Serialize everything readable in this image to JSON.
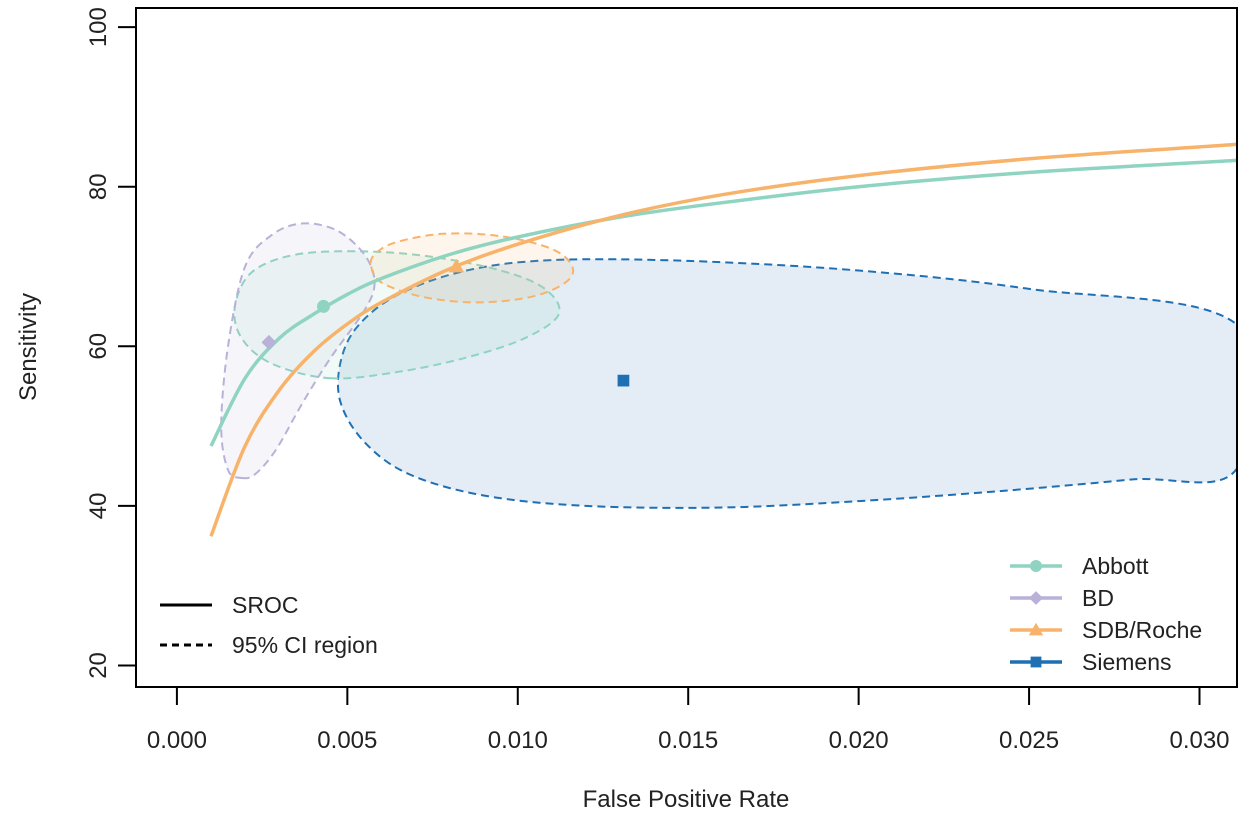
{
  "chart_data": {
    "type": "line",
    "xlabel": "False Positive Rate",
    "ylabel": "Sensitivity",
    "xlim": [
      -0.0012,
      0.0311
    ],
    "ylim": [
      17.3,
      102.4
    ],
    "x_ticks": [
      0.0,
      0.005,
      0.01,
      0.015,
      0.02,
      0.025,
      0.03
    ],
    "x_tick_labels": [
      "0.000",
      "0.005",
      "0.010",
      "0.015",
      "0.020",
      "0.025",
      "0.030"
    ],
    "y_ticks": [
      20,
      40,
      60,
      80,
      100
    ],
    "y_tick_labels": [
      "20",
      "40",
      "60",
      "80",
      "100"
    ],
    "legend_position": "bottom-right",
    "line_type_legend_position": "bottom-left",
    "line_types": [
      {
        "label": "SROC",
        "style": "solid"
      },
      {
        "label": "95% CI region",
        "style": "dashed"
      }
    ],
    "series": [
      {
        "name": "Abbott",
        "color": "#8fd4c1",
        "marker": "circle",
        "point": [
          0.0043,
          65.0
        ],
        "sroc": [
          [
            0.001,
            47.5
          ],
          [
            0.002,
            56.0
          ],
          [
            0.003,
            61.0
          ],
          [
            0.004,
            64.0
          ],
          [
            0.005,
            66.5
          ],
          [
            0.006,
            68.5
          ],
          [
            0.008,
            71.5
          ],
          [
            0.01,
            73.7
          ],
          [
            0.013,
            76.2
          ],
          [
            0.016,
            78.0
          ],
          [
            0.02,
            80.0
          ],
          [
            0.025,
            81.8
          ],
          [
            0.0311,
            83.3
          ]
        ],
        "ci": [
          [
            0.0045,
            56.0
          ],
          [
            0.0065,
            56.8
          ],
          [
            0.0085,
            58.6
          ],
          [
            0.0102,
            61.0
          ],
          [
            0.0112,
            64.0
          ],
          [
            0.0108,
            67.2
          ],
          [
            0.0095,
            69.5
          ],
          [
            0.0075,
            71.2
          ],
          [
            0.0055,
            71.9
          ],
          [
            0.0035,
            71.5
          ],
          [
            0.0022,
            69.3
          ],
          [
            0.0017,
            65.0
          ],
          [
            0.0019,
            61.0
          ],
          [
            0.0028,
            57.8
          ]
        ]
      },
      {
        "name": "BD",
        "color": "#b9b1d8",
        "marker": "diamond",
        "point": [
          0.0027,
          60.5
        ],
        "sroc": [],
        "ci": [
          [
            0.0019,
            43.5
          ],
          [
            0.0023,
            44.0
          ],
          [
            0.0029,
            47.0
          ],
          [
            0.0037,
            53.0
          ],
          [
            0.0045,
            58.5
          ],
          [
            0.0055,
            64.5
          ],
          [
            0.0058,
            68.0
          ],
          [
            0.0055,
            71.5
          ],
          [
            0.0047,
            74.5
          ],
          [
            0.0037,
            75.4
          ],
          [
            0.0028,
            74.0
          ],
          [
            0.002,
            70.0
          ],
          [
            0.0015,
            60.0
          ],
          [
            0.0013,
            50.0
          ],
          [
            0.0015,
            44.5
          ]
        ]
      },
      {
        "name": "SDB/Roche",
        "color": "#f8b36b",
        "marker": "triangle",
        "point": [
          0.0082,
          70.0
        ],
        "sroc": [
          [
            0.001,
            36.2
          ],
          [
            0.002,
            47.5
          ],
          [
            0.003,
            54.5
          ],
          [
            0.004,
            59.3
          ],
          [
            0.005,
            62.8
          ],
          [
            0.006,
            65.5
          ],
          [
            0.008,
            69.7
          ],
          [
            0.01,
            72.8
          ],
          [
            0.013,
            76.4
          ],
          [
            0.016,
            79.0
          ],
          [
            0.02,
            81.4
          ],
          [
            0.025,
            83.5
          ],
          [
            0.0311,
            85.3
          ]
        ],
        "ci": [
          [
            0.0057,
            70.0
          ],
          [
            0.006,
            68.0
          ],
          [
            0.0072,
            66.2
          ],
          [
            0.0088,
            65.5
          ],
          [
            0.0104,
            66.2
          ],
          [
            0.0114,
            68.0
          ],
          [
            0.0116,
            70.0
          ],
          [
            0.011,
            72.2
          ],
          [
            0.0095,
            73.8
          ],
          [
            0.0078,
            74.1
          ],
          [
            0.0064,
            73.0
          ],
          [
            0.0058,
            71.5
          ]
        ]
      },
      {
        "name": "Siemens",
        "color": "#1f6fb4",
        "marker": "square",
        "point": [
          0.0131,
          55.7
        ],
        "sroc": [],
        "ci": [
          [
            0.0311,
            44.7
          ],
          [
            0.028,
            43.3
          ],
          [
            0.024,
            41.8
          ],
          [
            0.02,
            40.6
          ],
          [
            0.016,
            39.8
          ],
          [
            0.012,
            40.0
          ],
          [
            0.009,
            41.3
          ],
          [
            0.0068,
            44.0
          ],
          [
            0.0055,
            48.0
          ],
          [
            0.0048,
            53.0
          ],
          [
            0.0048,
            58.0
          ],
          [
            0.0053,
            62.5
          ],
          [
            0.0065,
            66.5
          ],
          [
            0.0085,
            69.5
          ],
          [
            0.011,
            70.8
          ],
          [
            0.015,
            70.7
          ],
          [
            0.02,
            69.5
          ],
          [
            0.025,
            67.2
          ],
          [
            0.0311,
            62.7
          ]
        ]
      }
    ]
  }
}
